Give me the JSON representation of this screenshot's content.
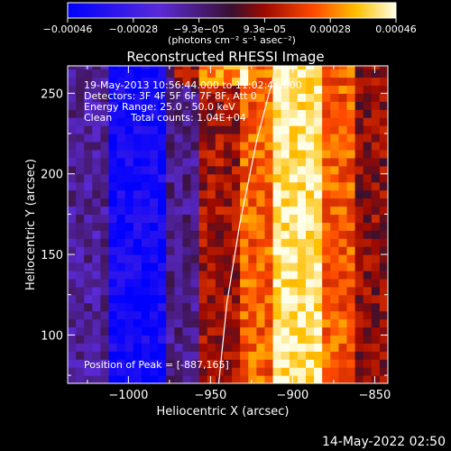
{
  "chart_data": {
    "type": "heatmap",
    "title": "Reconstructed RHESSI Image",
    "xlabel": "Heliocentric X (arcsec)",
    "ylabel": "Heliocentric Y (arcsec)",
    "xlim": [
      -1037,
      -842
    ],
    "ylim": [
      70,
      267
    ],
    "x_ticks": [
      -1000,
      -950,
      -900,
      -850
    ],
    "y_ticks": [
      100,
      150,
      200,
      250
    ],
    "x_tick_labels": [
      "−1000",
      "−950",
      "−900",
      "−850"
    ],
    "y_tick_labels": [
      "100",
      "150",
      "200",
      "250"
    ],
    "colorbar": {
      "colormap": "blue-white-red-yellow",
      "range": [
        -0.00046,
        0.00046
      ],
      "tick_labels": [
        "−0.00046",
        "−0.00028",
        "−9.3e−05",
        "9.3e−05",
        "0.00028",
        "0.00046"
      ],
      "unit_label": "(photons cm⁻² s⁻¹ asec⁻²)"
    },
    "annotations": {
      "time_range": "19-May-2013 10:56:44.000 to 11:02:44.000",
      "detectors": "Detectors: 3F 4F 5F 6F 7F 8F, Att 0",
      "energy": "Energy Range: 25.0 - 50.0 keV",
      "method": "Clean",
      "counts": "Total counts: 1.04E+04",
      "peak": "Position of Peak = [-887,165]"
    },
    "limb_curve": [
      [
        -945,
        70
      ],
      [
        -940,
        120
      ],
      [
        -932,
        170
      ],
      [
        -922,
        220
      ],
      [
        -910,
        267
      ]
    ],
    "bands": [
      {
        "x_from": -1037,
        "x_to": -1010,
        "level": -0.00012
      },
      {
        "x_from": -1010,
        "x_to": -978,
        "level": -0.0004
      },
      {
        "x_from": -978,
        "x_to": -955,
        "level": -0.0001
      },
      {
        "x_from": -955,
        "x_to": -932,
        "level": 0.0001
      },
      {
        "x_from": -932,
        "x_to": -910,
        "level": 0.00025
      },
      {
        "x_from": -910,
        "x_to": -880,
        "level": 0.00042
      },
      {
        "x_from": -880,
        "x_to": -860,
        "level": 0.00024
      },
      {
        "x_from": -860,
        "x_to": -842,
        "level": 8e-05
      }
    ]
  },
  "footer": {
    "timestamp": "14-May-2022 02:50"
  }
}
